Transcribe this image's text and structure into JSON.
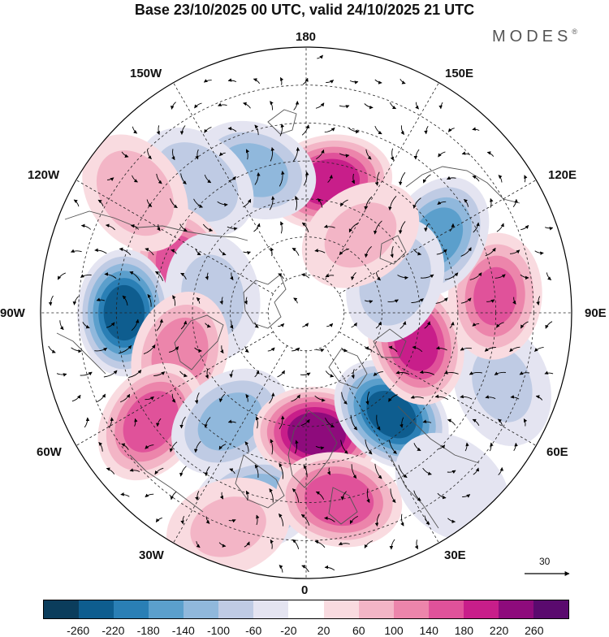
{
  "title": "Base 23/10/2025 00 UTC, valid 24/10/2025 21 UTC",
  "brand": "MODES",
  "brand_mark": "®",
  "longitude_labels": {
    "n180": "180",
    "e150": "150E",
    "w150": "150W",
    "e120": "120E",
    "w120": "120W",
    "e90": "90E",
    "w90": "90W",
    "e60": "60E",
    "w60": "60W",
    "e30": "30E",
    "w30": "30W",
    "s0": "0"
  },
  "reference_vector": {
    "value": "30"
  },
  "colorbar": {
    "ticks": [
      "-260",
      "-220",
      "-180",
      "-140",
      "-100",
      "-60",
      "-20",
      "20",
      "60",
      "100",
      "140",
      "180",
      "220",
      "260"
    ],
    "colors": [
      "#0b3d5c",
      "#0e5d8f",
      "#2a7fb5",
      "#5b9fcc",
      "#90b8dc",
      "#bfcbe4",
      "#e4e4f1",
      "#ffffff",
      "#f9dbe0",
      "#f3b5c6",
      "#ec85ab",
      "#e0529a",
      "#c81e8a",
      "#8e0b7c",
      "#5a0a6e"
    ]
  },
  "anomalies": [
    {
      "lon": 170,
      "lat": 55,
      "value": 200
    },
    {
      "lon": -160,
      "lat": 50,
      "value": -110
    },
    {
      "lon": -140,
      "lat": 45,
      "value": -90
    },
    {
      "lon": -110,
      "lat": 55,
      "value": 160
    },
    {
      "lon": -125,
      "lat": 35,
      "value": 90
    },
    {
      "lon": -100,
      "lat": 65,
      "value": -70
    },
    {
      "lon": -90,
      "lat": 42,
      "value": -230
    },
    {
      "lon": -72,
      "lat": 55,
      "value": 120
    },
    {
      "lon": -55,
      "lat": 40,
      "value": 160
    },
    {
      "lon": -35,
      "lat": 55,
      "value": -110
    },
    {
      "lon": -15,
      "lat": 38,
      "value": -130
    },
    {
      "lon": 5,
      "lat": 58,
      "value": 240
    },
    {
      "lon": 10,
      "lat": 40,
      "value": 170
    },
    {
      "lon": 40,
      "lat": 55,
      "value": -230
    },
    {
      "lon": 70,
      "lat": 35,
      "value": -60
    },
    {
      "lon": 75,
      "lat": 60,
      "value": 190
    },
    {
      "lon": 95,
      "lat": 40,
      "value": 140
    },
    {
      "lon": 120,
      "lat": 50,
      "value": -150
    },
    {
      "lon": 110,
      "lat": 65,
      "value": -90
    },
    {
      "lon": 145,
      "lat": 65,
      "value": 60
    },
    {
      "lon": 40,
      "lat": 30,
      "value": -50
    },
    {
      "lon": -20,
      "lat": 30,
      "value": 60
    }
  ]
}
